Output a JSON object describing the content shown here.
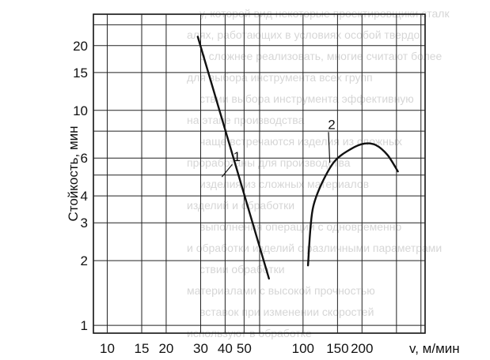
{
  "chart_data": {
    "type": "line",
    "xlabel": "v, м/мин",
    "ylabel": "Стойкость, мин",
    "x_scale": "log",
    "y_scale": "log",
    "xlim": [
      8.5,
      420
    ],
    "ylim": [
      0.92,
      28
    ],
    "grid": true,
    "x_ticks": [
      {
        "value": 10,
        "label": "10"
      },
      {
        "value": 15,
        "label": "15"
      },
      {
        "value": 20,
        "label": "20"
      },
      {
        "value": 30,
        "label": "30"
      },
      {
        "value": 40,
        "label": "40"
      },
      {
        "value": 50,
        "label": "50"
      },
      {
        "value": 100,
        "label": "100"
      },
      {
        "value": 150,
        "label": "150"
      },
      {
        "value": 200,
        "label": "200"
      }
    ],
    "x_grid": [
      10,
      15,
      20,
      30,
      40,
      50,
      60,
      100,
      150,
      200,
      300,
      400
    ],
    "y_ticks": [
      {
        "value": 1,
        "label": "1"
      },
      {
        "value": 2,
        "label": "2"
      },
      {
        "value": 3,
        "label": "3"
      },
      {
        "value": 4,
        "label": "4"
      },
      {
        "value": 6,
        "label": "6"
      },
      {
        "value": 10,
        "label": "10"
      },
      {
        "value": 15,
        "label": "15"
      },
      {
        "value": 20,
        "label": "20"
      }
    ],
    "y_grid": [
      1,
      2,
      3,
      4,
      5,
      6,
      8,
      10,
      15,
      20,
      25
    ],
    "series": [
      {
        "label": "1",
        "label_at": {
          "x": 46,
          "y": 5.8
        },
        "points": [
          [
            29,
            22
          ],
          [
            67,
            1.65
          ]
        ]
      },
      {
        "label": "2",
        "label_at": {
          "x": 140,
          "y": 8.2
        },
        "points": [
          [
            106,
            1.9
          ],
          [
            109,
            2.8
          ],
          [
            113,
            3.6
          ],
          [
            125,
            4.6
          ],
          [
            145,
            5.8
          ],
          [
            175,
            6.6
          ],
          [
            205,
            7.0
          ],
          [
            235,
            6.9
          ],
          [
            270,
            6.2
          ],
          [
            305,
            5.2
          ]
        ]
      }
    ]
  },
  "background_text": [
    "у, которой вид некоторые проектировщики сталк",
    "алях, работающих в условиях особой твердо",
    "о сложнее реализовать, многие считают более",
    "для выбора инструмента всех групп",
    "ствии выбора инструмента эффективную",
    "на этапе производства",
    "чаще встречаются изделия из сложных",
    "проработаны для производства",
    "изделия из сложных материалов",
    "изделий и обработки",
    "выполнения операций с одновременно",
    "и обработки изделий с различными параметрами",
    "ствии обработки",
    "материалами с высокой прочностью",
    "вставок при изменении скоростей",
    "используют в обработке"
  ]
}
